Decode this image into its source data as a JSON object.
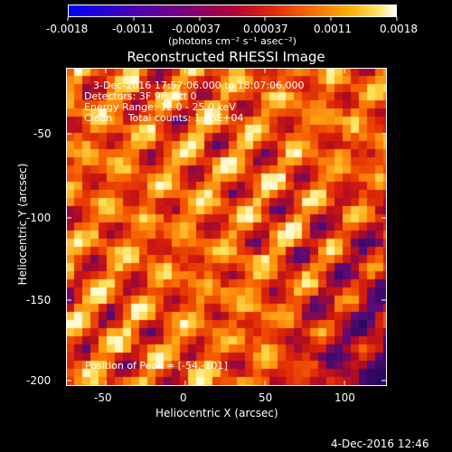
{
  "colorbar": {
    "tick_labels": [
      "-0.0018",
      "-0.0011",
      "-0.00037",
      "0.00037",
      "0.0011",
      "0.0018"
    ],
    "units_label": "(photons cm⁻² s⁻¹ asec⁻²)"
  },
  "plot": {
    "title": "Reconstructed RHESSI Image",
    "info_lines": [
      "3-Dec-2016 17:57:06.000 to 18:07:06.000",
      "Detectors: 3F 9F, Att 0",
      "Energy Range: 12.0 - 25.0 keV",
      "Clean     Total counts: 1.96E+04"
    ],
    "peak_label": "Position of Peak = [-54,-101]",
    "xlabel": "Heliocentric X (arcsec)",
    "ylabel": "Heliocentric Y (arcsec)",
    "x_tick_labels": [
      "-50",
      "0",
      "50",
      "100"
    ],
    "y_tick_labels": [
      "-50",
      "-100",
      "-150",
      "-200"
    ]
  },
  "timestamp": "4-Dec-2016 12:46",
  "colors": {
    "background": "#000000",
    "text": "#ffffff",
    "cold": "#2a0a5a",
    "hot": "#fff080"
  }
}
